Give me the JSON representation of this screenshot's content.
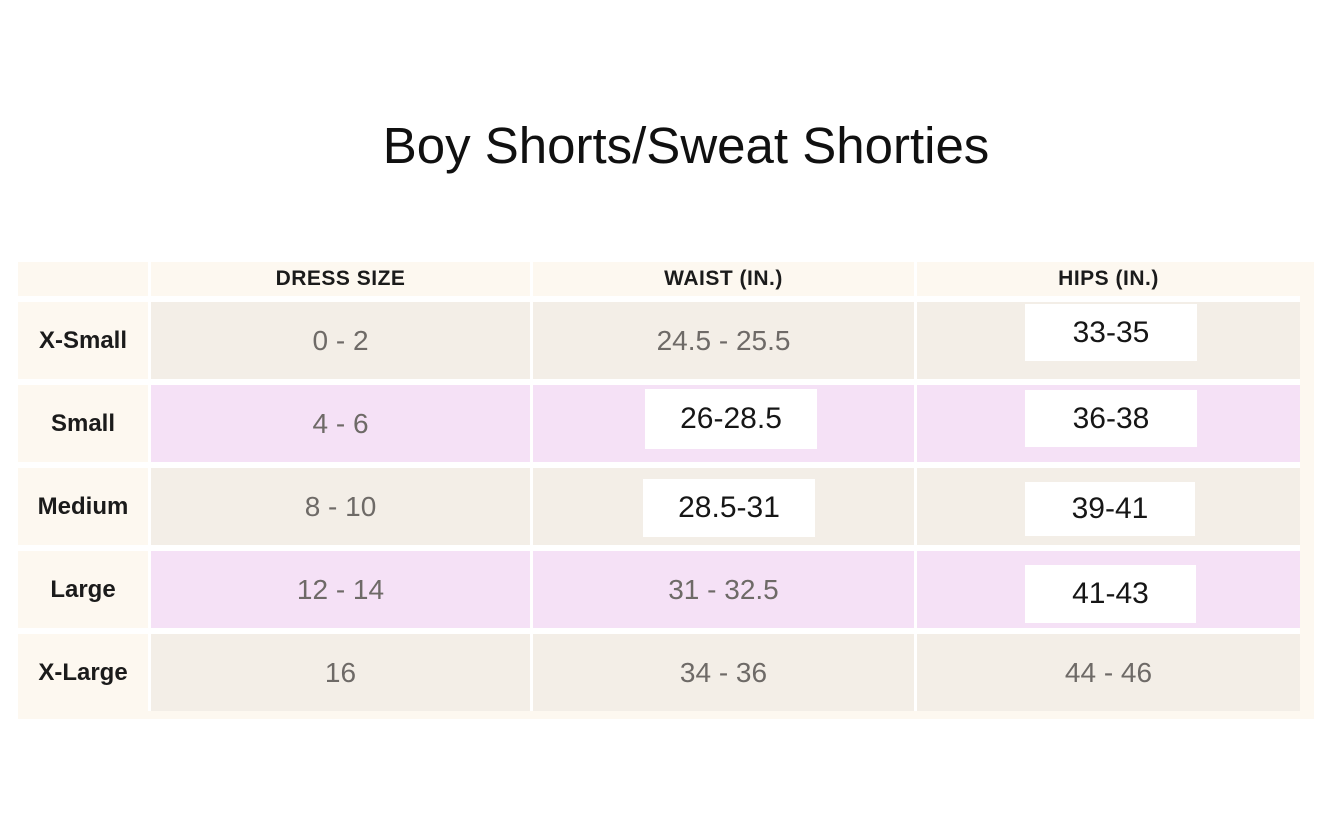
{
  "title": "Boy Shorts/Sweat Shorties",
  "chart_data": {
    "type": "table",
    "title": "Boy Shorts/Sweat Shorties",
    "columns": [
      "",
      "DRESS SIZE",
      "WAIST (IN.)",
      "HIPS (IN.)"
    ],
    "rows": [
      {
        "label": "X-Small",
        "dress_size": "0 - 2",
        "waist": "24.5 - 25.5",
        "hips": "33-35"
      },
      {
        "label": "Small",
        "dress_size": "4 - 6",
        "waist": "26-28.5",
        "hips": "36-38"
      },
      {
        "label": "Medium",
        "dress_size": "8 - 10",
        "waist": "28.5-31",
        "hips": "39-41"
      },
      {
        "label": "Large",
        "dress_size": "12 - 14",
        "waist": "31 - 32.5",
        "hips": "41-43"
      },
      {
        "label": "X-Large",
        "dress_size": "16",
        "waist": "34 - 36",
        "hips": "44 - 46"
      }
    ],
    "row_tints": [
      "beige",
      "pink",
      "beige",
      "pink",
      "beige"
    ],
    "white_patch_cells": [
      "X-Small hips",
      "Small waist",
      "Small hips",
      "Medium waist",
      "Medium hips",
      "Large hips"
    ],
    "legend": "none",
    "grid": "white gaps between cells"
  },
  "colors": {
    "page_background": "#FFFFFF",
    "table_background_cream": "#FDF8F0",
    "row_tint_beige": "#F3EEE7",
    "row_tint_pink": "#F5E1F6",
    "patch_background": "#FFFFFF",
    "header_label_text": "#1B1B1B",
    "value_text": "#6E6A67",
    "patch_text": "#161616",
    "title_text": "#101010"
  }
}
